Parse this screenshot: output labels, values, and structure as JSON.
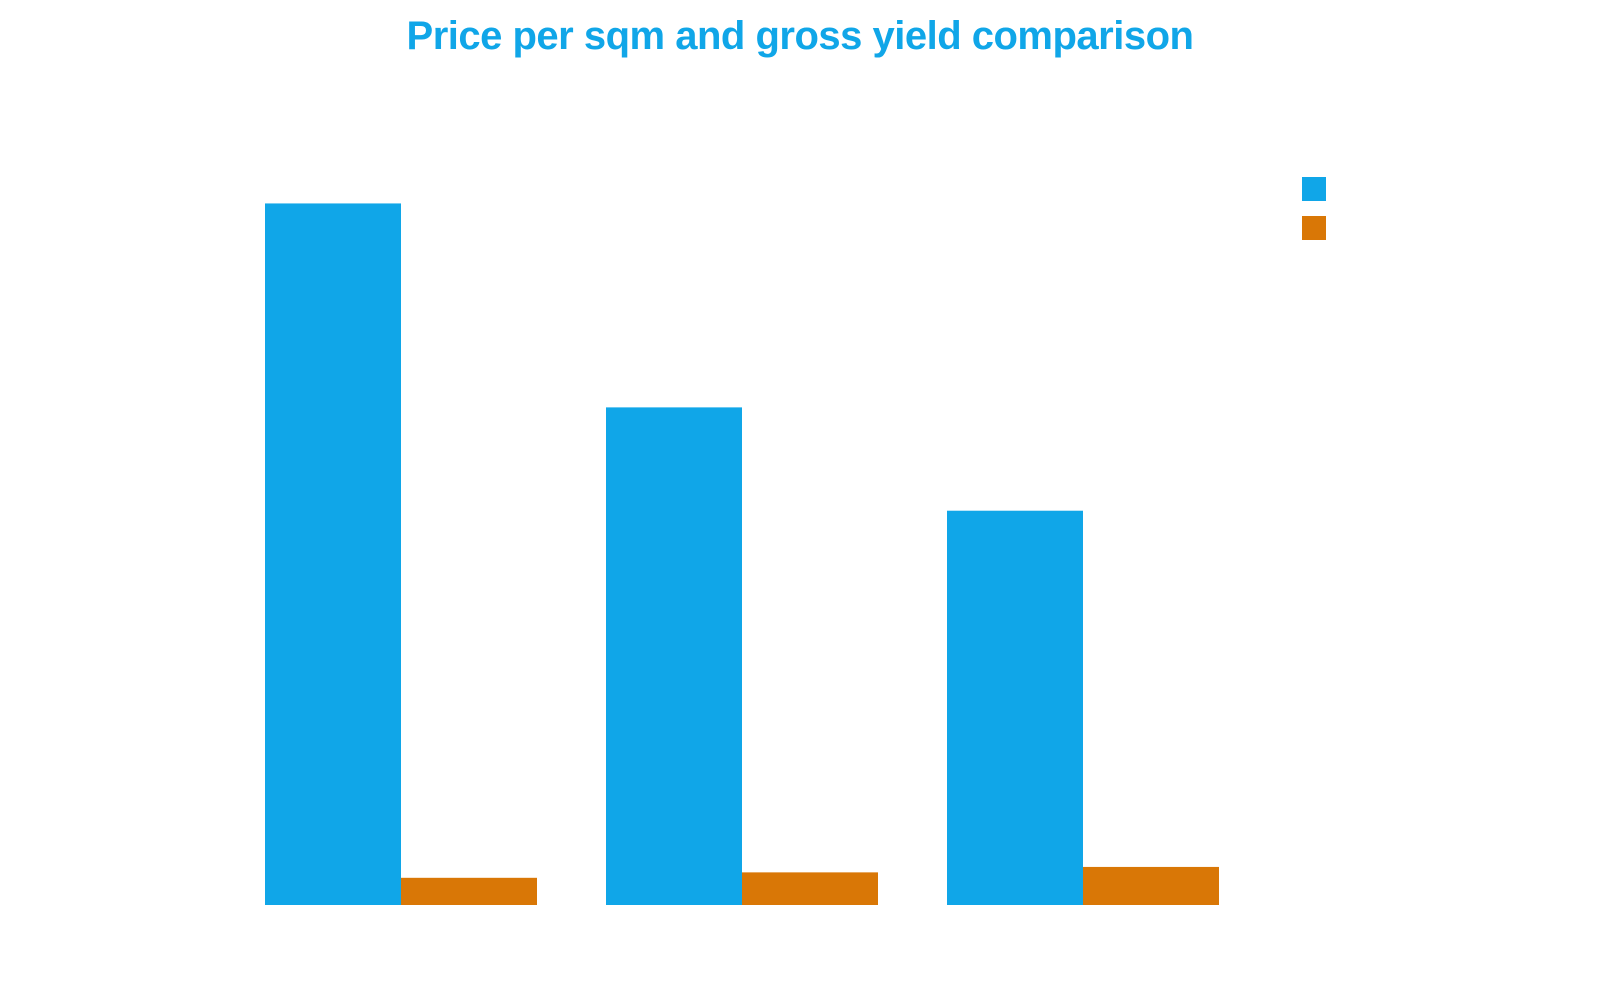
{
  "chart_data": {
    "type": "bar",
    "title": "Price per sqm and gross yield comparison",
    "categories": [
      "",
      "",
      ""
    ],
    "series": [
      {
        "values": [
          12.9,
          9.15,
          7.25
        ],
        "color": "#10a6e8"
      },
      {
        "values": [
          0.5,
          0.6,
          0.7
        ],
        "color": "#d97706"
      }
    ],
    "ylim": [
      0,
      13
    ],
    "grid": false,
    "legend_position": "top-right"
  }
}
